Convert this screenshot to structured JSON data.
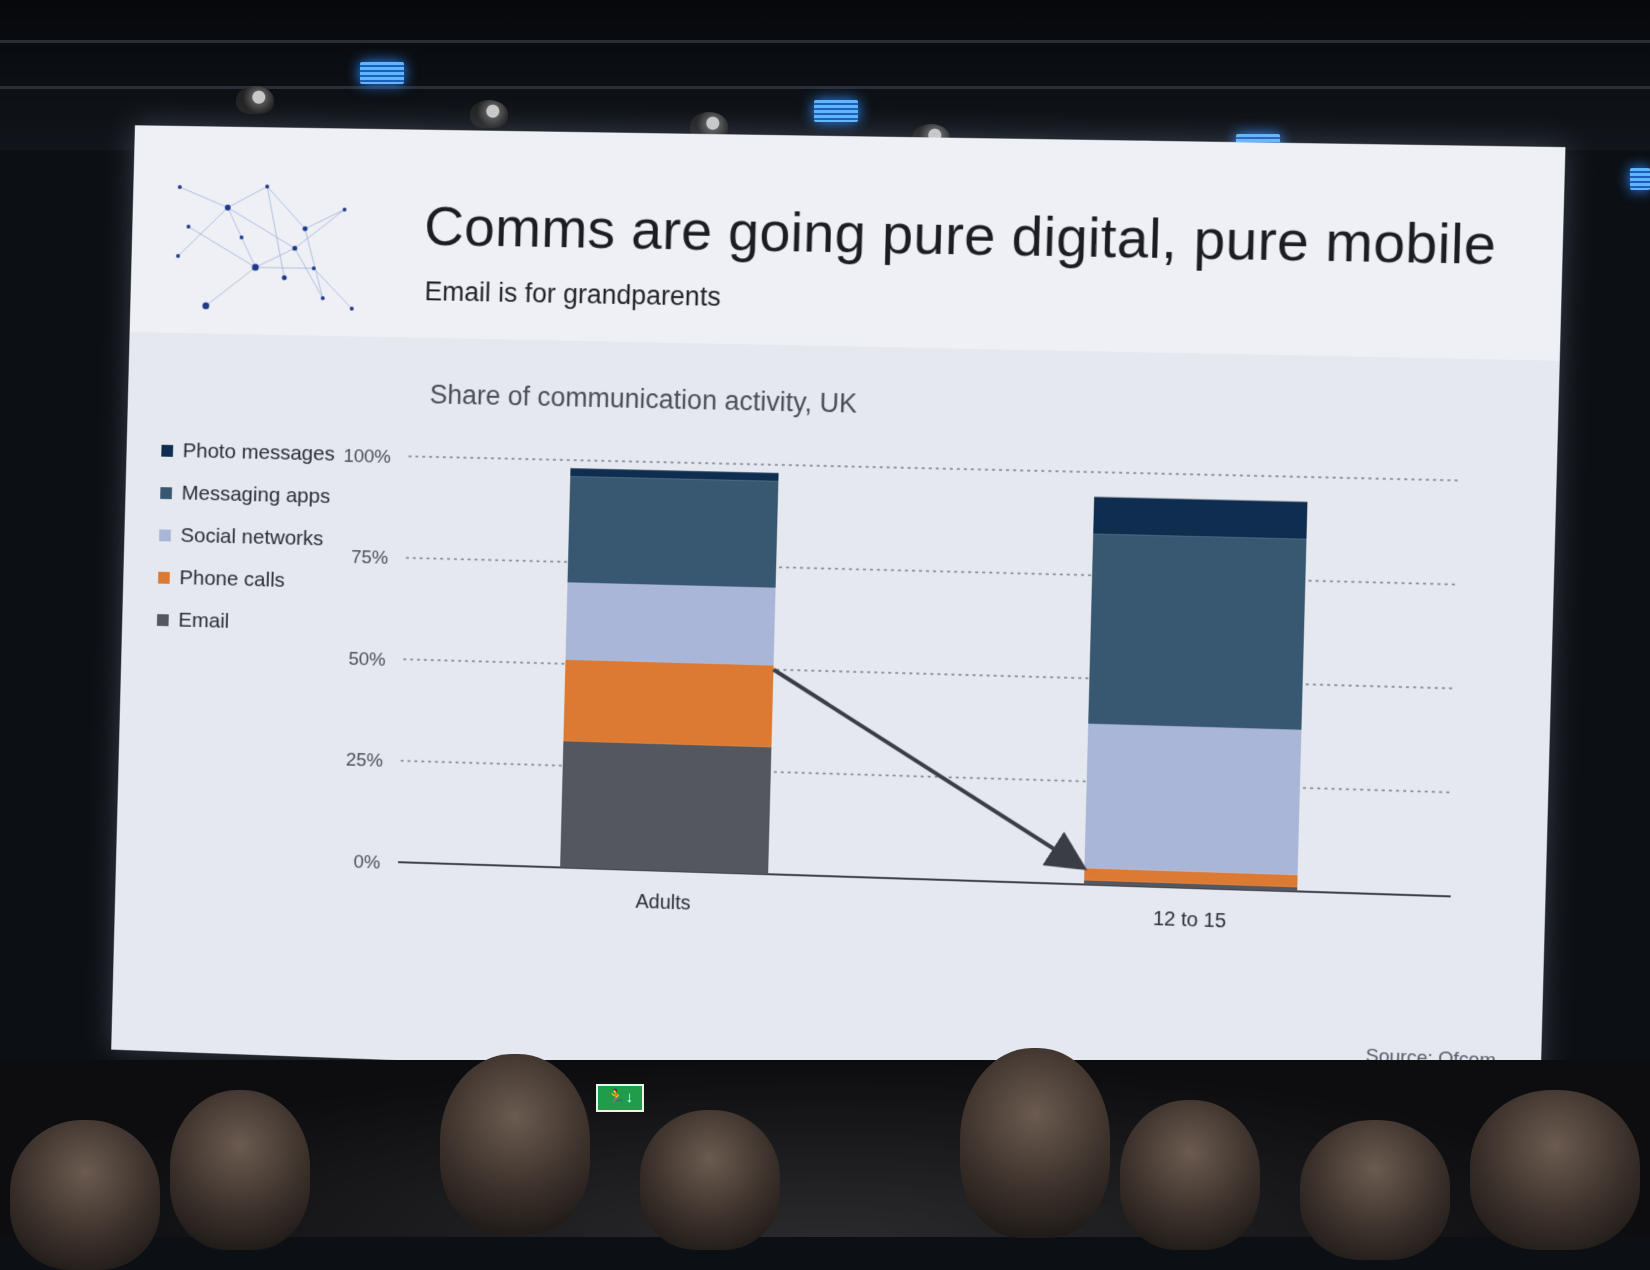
{
  "slide": {
    "title": "Comms are going pure digital, pure mobile",
    "subtitle": "Email is for grandparents",
    "source": "Source: Ofcom"
  },
  "chart_data": {
    "type": "bar",
    "stacked": true,
    "title": "Share of communication activity, UK",
    "categories": [
      "Adults",
      "12 to 15"
    ],
    "yticks": [
      "100%",
      "75%",
      "50%",
      "25%",
      "0%"
    ],
    "ylim": [
      0,
      100
    ],
    "grid": true,
    "legend_position": "left",
    "series": [
      {
        "name": "Email",
        "color": "#54575e",
        "values": [
          31,
          1
        ]
      },
      {
        "name": "Phone calls",
        "color": "#dc7a34",
        "values": [
          20,
          3
        ]
      },
      {
        "name": "Social networks",
        "color": "#a9b6d8",
        "values": [
          19,
          35
        ]
      },
      {
        "name": "Messaging apps",
        "color": "#375870",
        "values": [
          26,
          46
        ]
      },
      {
        "name": "Photo messages",
        "color": "#0f2d4f",
        "values": [
          2,
          9
        ]
      }
    ],
    "legend_order": [
      "Photo messages",
      "Messaging apps",
      "Social networks",
      "Phone calls",
      "Email"
    ],
    "annotation": {
      "type": "arrow",
      "from": {
        "category": "Adults",
        "value": 50
      },
      "to": {
        "category": "12 to 15",
        "value": 4
      }
    }
  },
  "colors": {
    "slide_background": "#e6e8f0",
    "header_background": "#eef0f6",
    "gridline": "#7b7f88",
    "arrow": "#3a3d44"
  }
}
